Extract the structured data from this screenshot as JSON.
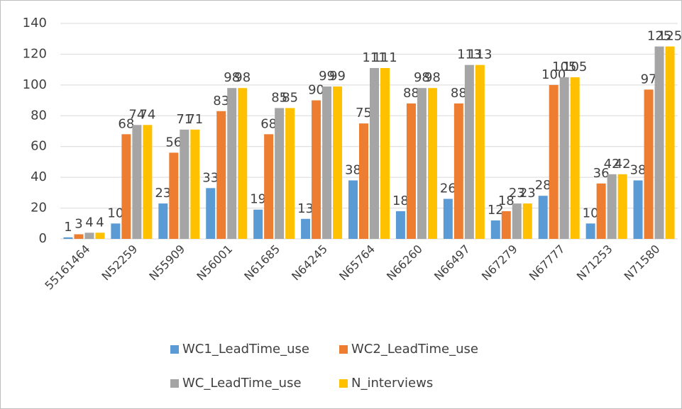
{
  "chart_data": {
    "type": "bar",
    "categories": [
      "55161464",
      "N52259",
      "N55909",
      "N56001",
      "N61685",
      "N64245",
      "N65764",
      "N66260",
      "N66497",
      "N67279",
      "N67777",
      "N71253",
      "N71580"
    ],
    "series": [
      {
        "name": "WC1_LeadTime_use",
        "color": "#5b9bd5",
        "values": [
          1,
          10,
          23,
          33,
          19,
          13,
          38,
          18,
          26,
          12,
          28,
          10,
          38
        ]
      },
      {
        "name": "WC2_LeadTime_use",
        "color": "#ed7d31",
        "values": [
          3,
          68,
          56,
          83,
          68,
          90,
          75,
          88,
          88,
          18,
          100,
          36,
          97
        ]
      },
      {
        "name": "WC_LeadTime_use",
        "color": "#a5a5a5",
        "values": [
          4,
          74,
          71,
          98,
          85,
          99,
          111,
          98,
          113,
          23,
          105,
          42,
          125
        ]
      },
      {
        "name": "N_interviews",
        "color": "#ffc000",
        "values": [
          4,
          74,
          71,
          98,
          85,
          99,
          111,
          98,
          113,
          23,
          105,
          42,
          125
        ]
      }
    ],
    "ylim": [
      0,
      140
    ],
    "yticks": [
      0,
      20,
      40,
      60,
      80,
      100,
      120,
      140
    ],
    "grid": true,
    "legend": "bottom"
  }
}
